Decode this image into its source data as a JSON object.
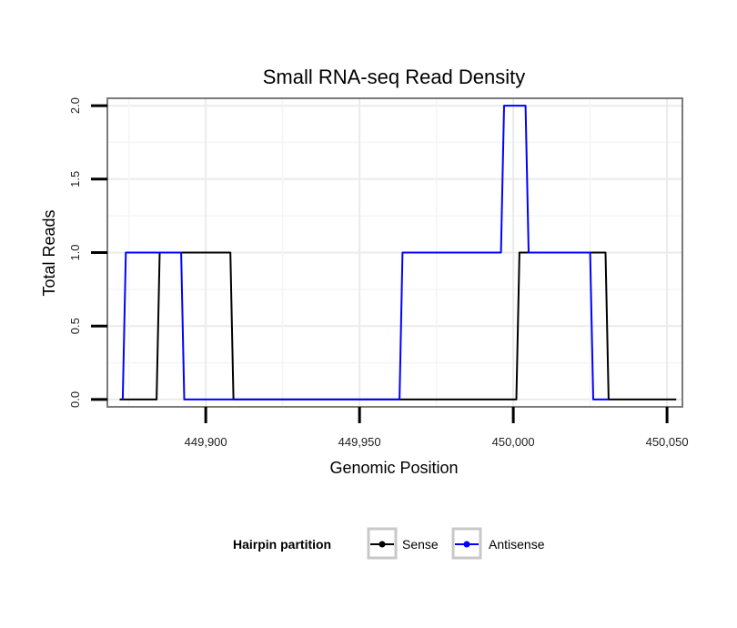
{
  "chart_data": {
    "type": "line",
    "title": "Small RNA-seq Read Density",
    "xlabel": "Genomic Position",
    "ylabel": "Total Reads",
    "xlim": [
      449868,
      450055
    ],
    "ylim": [
      -0.05,
      2.05
    ],
    "xticks": [
      449900,
      449950,
      450000,
      450050
    ],
    "xtick_labels": [
      "449,900",
      "449,950",
      "450,000",
      "450,050"
    ],
    "yticks": [
      0,
      0.5,
      1,
      1.5,
      2
    ],
    "ytick_labels": [
      "0.0",
      "0.5",
      "1.0",
      "1.5",
      "2.0"
    ],
    "grid": true,
    "legend": {
      "title": "Hairpin partition",
      "position": "bottom"
    },
    "series": [
      {
        "name": "Sense",
        "color": "#000000",
        "x": [
          449872,
          449884,
          449885,
          449908,
          449909,
          450001,
          450002,
          450030,
          450031,
          450053
        ],
        "y": [
          0,
          0,
          1,
          1,
          0,
          0,
          1,
          1,
          0,
          0
        ]
      },
      {
        "name": "Antisense",
        "color": "#0000ff",
        "x": [
          449873,
          449874,
          449892,
          449893,
          449908,
          449909,
          449963,
          449964,
          449996,
          449997,
          450004,
          450005,
          450025,
          450026,
          450031
        ],
        "y": [
          0,
          1,
          1,
          0,
          0,
          0,
          0,
          1,
          1,
          2,
          2,
          1,
          1,
          0,
          0
        ]
      }
    ]
  }
}
